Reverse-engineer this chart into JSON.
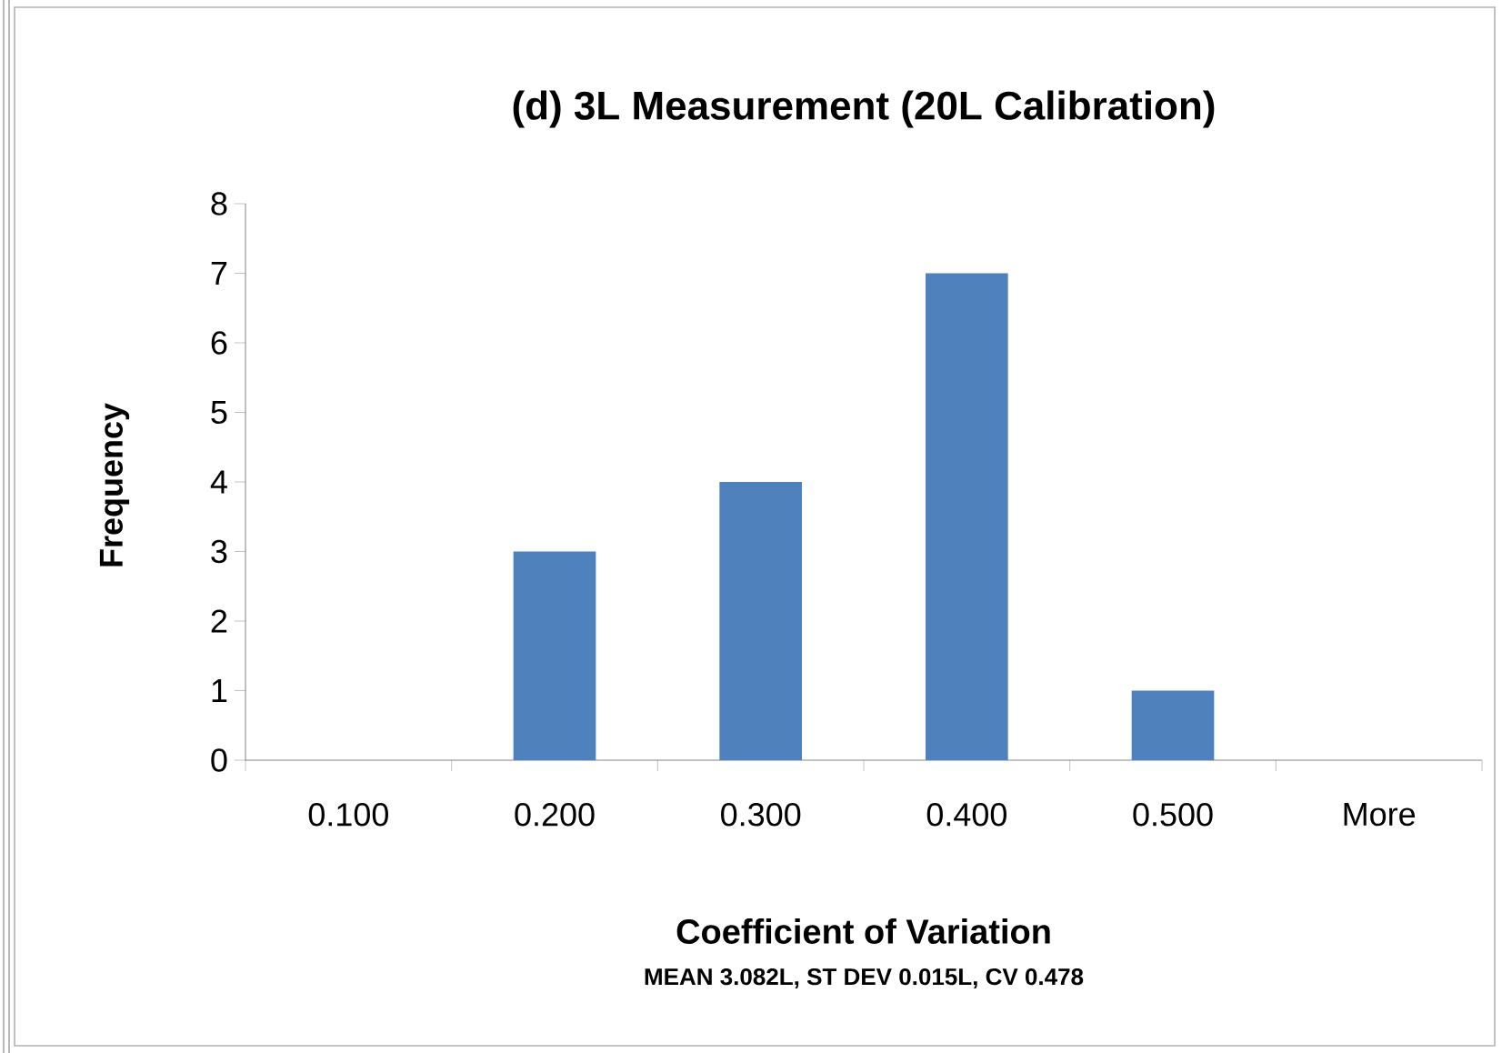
{
  "chart_data": {
    "type": "bar",
    "title": "(d) 3L Measurement (20L Calibration)",
    "xlabel": "Coefficient of Variation",
    "ylabel": "Frequency",
    "annotations": [
      "MEAN 3.082L,  ST DEV 0.015L,  CV 0.478"
    ],
    "categories": [
      "0.100",
      "0.200",
      "0.300",
      "0.400",
      "0.500",
      "More"
    ],
    "values": [
      0,
      3,
      4,
      7,
      1,
      0
    ],
    "color": "#4f81bd",
    "ylim": [
      0,
      8
    ],
    "yticks": [
      0,
      1,
      2,
      3,
      4,
      5,
      6,
      7,
      8
    ],
    "grid": false
  }
}
